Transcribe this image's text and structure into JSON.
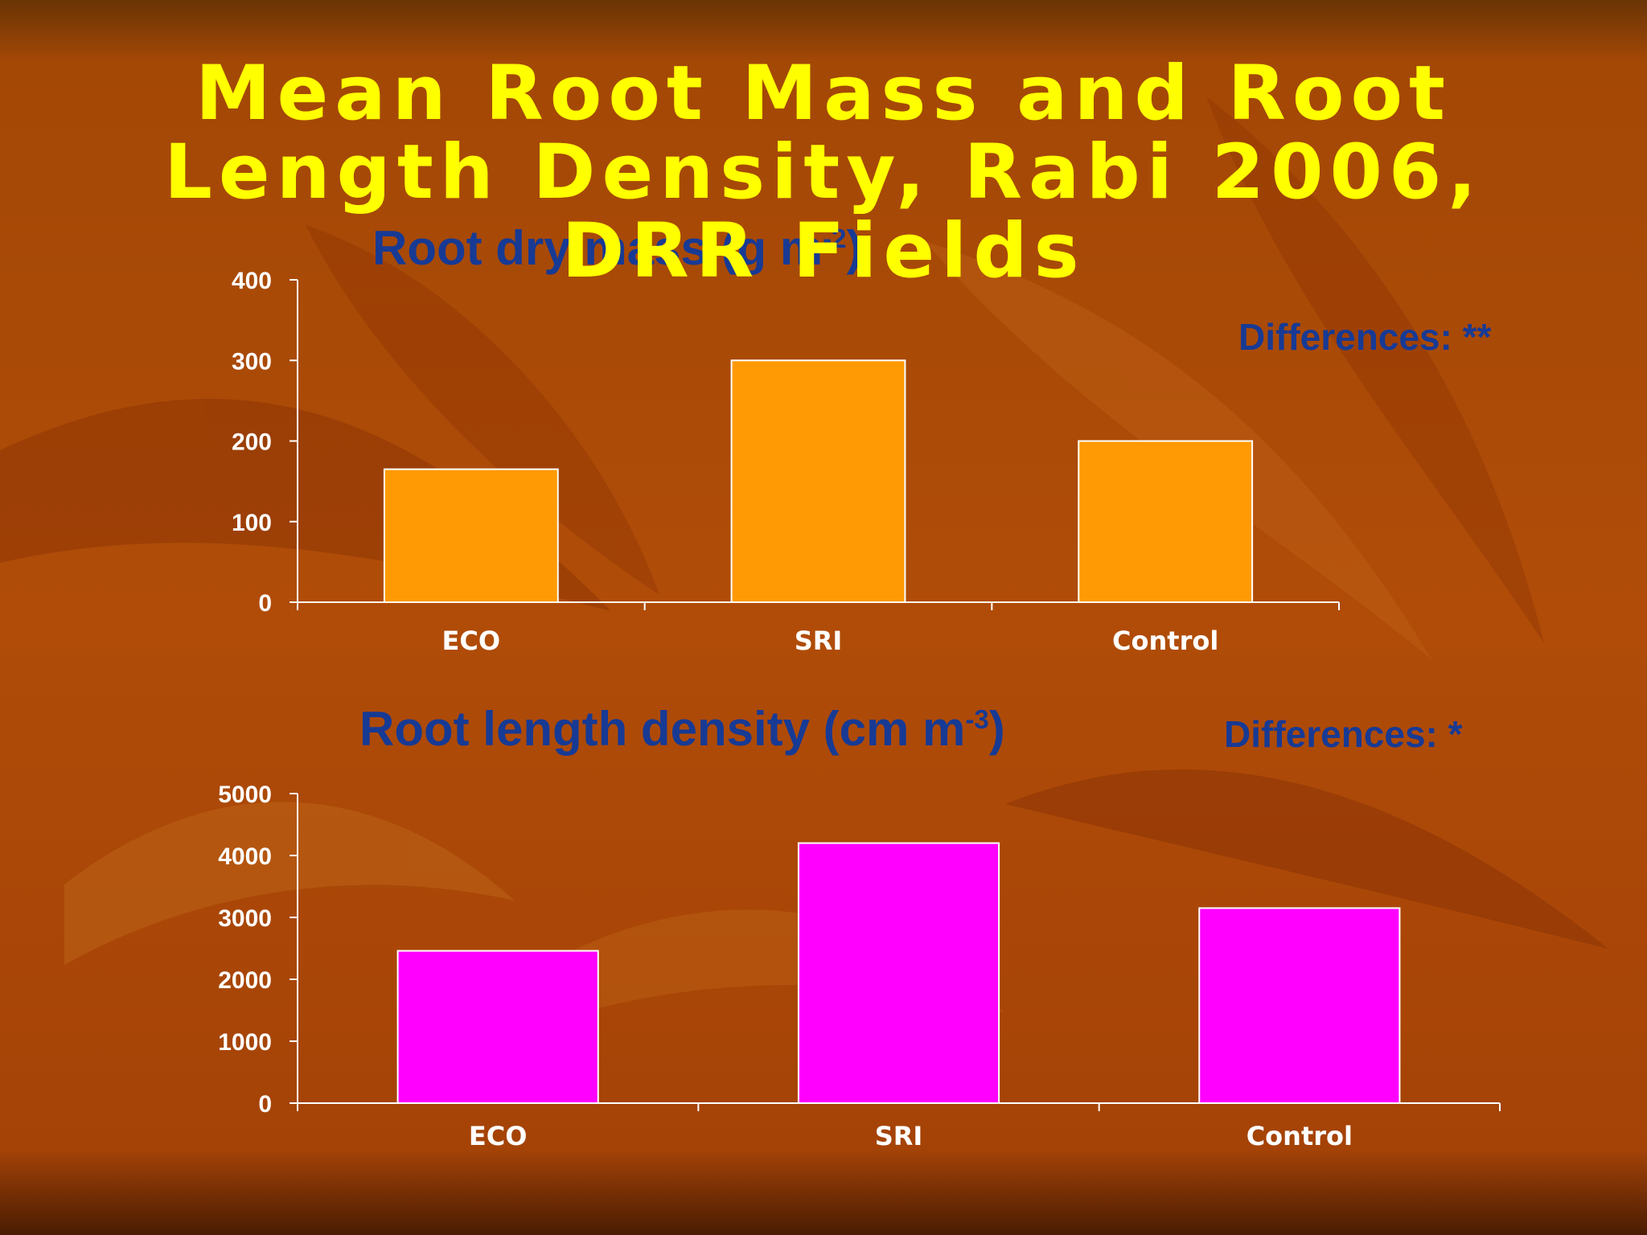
{
  "slide": {
    "title_lines": [
      "Mean Root Mass and Root",
      "Length Density, Rabi 2006,",
      "DRR Fields"
    ]
  },
  "colors": {
    "accent_title": "#ffff00",
    "label_blue": "#173a94",
    "bar_orange": "#ff9a04",
    "bar_magenta": "#ff00ff",
    "axis": "#ffffff"
  },
  "chart_data": [
    {
      "type": "bar",
      "title": "Root dry mass (g m",
      "title_sup": "-2",
      "title_end": ")",
      "annotation": "Differences: **",
      "categories": [
        "ECO",
        "SRI",
        "Control"
      ],
      "values": [
        165,
        300,
        200
      ],
      "ylim": [
        0,
        400
      ],
      "yticks": [
        0,
        100,
        200,
        300,
        400
      ],
      "xlabel": "",
      "ylabel": "",
      "grid": false,
      "bar_color": "#ff9a04"
    },
    {
      "type": "bar",
      "title": "Root length density (cm m",
      "title_sup": "-3",
      "title_end": ")",
      "annotation": "Differences: *",
      "categories": [
        "ECO",
        "SRI",
        "Control"
      ],
      "values": [
        2460,
        4200,
        3150
      ],
      "ylim": [
        0,
        5000
      ],
      "yticks": [
        0,
        1000,
        2000,
        3000,
        4000,
        5000
      ],
      "xlabel": "",
      "ylabel": "",
      "grid": false,
      "bar_color": "#ff00ff"
    }
  ]
}
